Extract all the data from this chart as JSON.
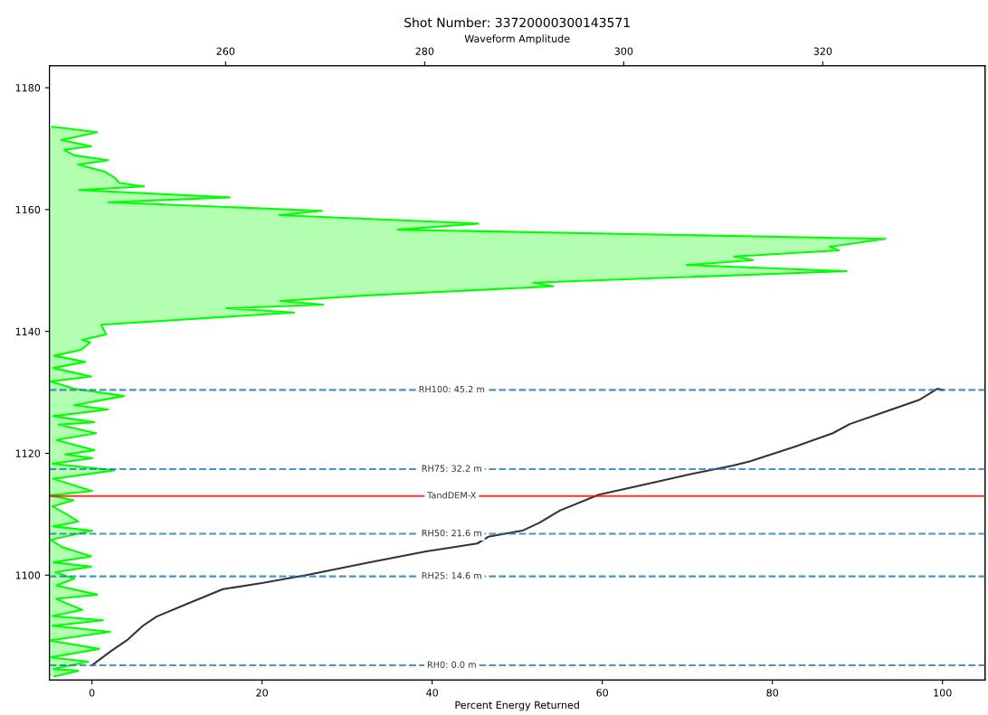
{
  "chart_data": {
    "type": "line",
    "title": "Shot Number: 33720000300143571",
    "xlabel": "Percent Energy Returned",
    "x2label": "Waveform Amplitude",
    "xlim": [
      -5,
      105
    ],
    "xticks": [
      0,
      20,
      40,
      60,
      80,
      100
    ],
    "x2lim": [
      242.3,
      336.3
    ],
    "x2ticks": [
      260,
      280,
      300,
      320
    ],
    "ylim": [
      1082.8,
      1183.6
    ],
    "yticks": [
      1100,
      1120,
      1140,
      1160,
      1180
    ],
    "grid": false,
    "legend": false,
    "series": [
      {
        "type": "area",
        "axis": "x2",
        "color": "#00ff00",
        "x": [
          242.6,
          247.1,
          243.5,
          246.5,
          243.8,
          244.8,
          248.2,
          245.2,
          247.9,
          248.9,
          249.3,
          251.8,
          245.3,
          260.4,
          248.2,
          269.7,
          265.4,
          285.4,
          277.3,
          326.3,
          320.7,
          321.6,
          311.1,
          313.0,
          306.3,
          322.4,
          290.9,
          292.9,
          274.1,
          265.5,
          269.8,
          260.1,
          266.9,
          247.5,
          248.0,
          245.6,
          246.4,
          245.5,
          242.8,
          245.9,
          242.7,
          246.5,
          242.4,
          244.8,
          249.8,
          244.8,
          248.2,
          242.7,
          246.8,
          243.2,
          247.0,
          243.0,
          246.8,
          243.9,
          246.6,
          242.6,
          248.8,
          242.7,
          246.6,
          242.3,
          244.7,
          242.6,
          243.9,
          245.2,
          242.7,
          246.6,
          242.4,
          243.6,
          246.5,
          242.7,
          246.5,
          242.9,
          244.8,
          243.0,
          247.1,
          243.0,
          245.6,
          242.6,
          247.7,
          242.6,
          248.4,
          242.3,
          247.3,
          242.4,
          246.2,
          242.7,
          245.2,
          242.8
        ],
        "values": [
          1173.6,
          1172.7,
          1171.4,
          1170.4,
          1169.8,
          1168.9,
          1168.1,
          1167.4,
          1166.2,
          1165.2,
          1164.4,
          1163.8,
          1163.2,
          1162.0,
          1161.2,
          1159.8,
          1159.1,
          1157.7,
          1156.7,
          1155.2,
          1153.9,
          1153.3,
          1152.3,
          1151.7,
          1150.9,
          1149.9,
          1148.0,
          1147.4,
          1145.9,
          1145.0,
          1144.4,
          1143.8,
          1143.1,
          1141.1,
          1139.5,
          1138.6,
          1138.2,
          1137.0,
          1136.0,
          1135.0,
          1134.0,
          1132.6,
          1131.8,
          1130.6,
          1129.4,
          1127.9,
          1127.2,
          1126.1,
          1125.1,
          1124.7,
          1123.3,
          1122.2,
          1120.5,
          1119.8,
          1119.2,
          1118.3,
          1117.2,
          1115.8,
          1113.8,
          1113.1,
          1112.3,
          1111.3,
          1110.1,
          1108.8,
          1108.0,
          1107.3,
          1105.8,
          1104.6,
          1103.1,
          1102.1,
          1101.4,
          1100.5,
          1099.4,
          1098.3,
          1096.8,
          1096.1,
          1094.3,
          1093.3,
          1092.6,
          1091.7,
          1090.7,
          1089.3,
          1087.9,
          1086.5,
          1085.8,
          1084.6,
          1084.3,
          1083.4
        ]
      },
      {
        "color": "#333333",
        "x": [
          0,
          2.3,
          4.1,
          6.0,
          7.6,
          11.2,
          15.4,
          20.0,
          25.2,
          32.3,
          39.3,
          45.3,
          46.6,
          50.6,
          52.6,
          55.0,
          59.6,
          64.4,
          70.4,
          75.4,
          77.4,
          82.7,
          87.1,
          89.1,
          92.8,
          97.3,
          99.4,
          100
        ],
        "values": [
          1085.2,
          1087.6,
          1089.3,
          1091.7,
          1093.2,
          1095.3,
          1097.7,
          1098.7,
          1100.0,
          1102.0,
          1103.9,
          1105.2,
          1106.3,
          1107.3,
          1108.6,
          1110.6,
          1113.2,
          1114.7,
          1116.6,
          1118.0,
          1118.7,
          1121.1,
          1123.3,
          1124.8,
          1126.6,
          1128.8,
          1130.6,
          1130.4
        ]
      }
    ],
    "ref_lines": [
      {
        "axis": "y",
        "value": 1130.4,
        "color": "#1f77b4",
        "line_style": "dashed"
      },
      {
        "axis": "y",
        "value": 1117.4,
        "color": "#1f77b4",
        "line_style": "dashed"
      },
      {
        "axis": "y",
        "value": 1113.0,
        "label": "TandDEM-X",
        "color": "#ff0000",
        "line_style": "solid"
      },
      {
        "axis": "y",
        "value": 1106.8,
        "color": "#1f77b4",
        "line_style": "dashed"
      },
      {
        "axis": "y",
        "value": 1099.8,
        "color": "#1f77b4",
        "line_style": "dashed"
      },
      {
        "axis": "y",
        "value": 1085.2,
        "color": "#1f77b4",
        "line_style": "dashed"
      }
    ],
    "annotations": [
      {
        "text": "RH100: 45.2 m",
        "y": 1130.4
      },
      {
        "text": "RH75: 32.2 m",
        "y": 1117.4
      },
      {
        "text": "RH50: 21.6 m",
        "y": 1106.8
      },
      {
        "text": "RH25: 14.6 m",
        "y": 1099.8
      },
      {
        "text": "RH0: 0.0 m",
        "y": 1085.2
      }
    ]
  }
}
